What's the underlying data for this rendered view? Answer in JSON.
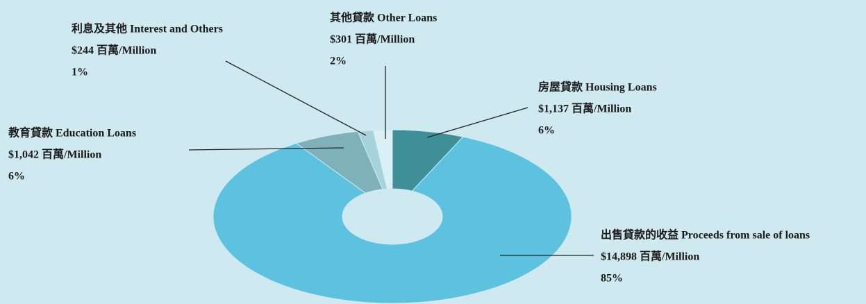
{
  "chart_data": {
    "type": "pie",
    "donut": true,
    "categories": [
      "房屋貸款 Housing Loans",
      "出售貸款的收益 Proceeds from sale of loans",
      "教育貸款 Education Loans",
      "利息及其他 Interest and Others",
      "其他貸款 Other Loans"
    ],
    "values": [
      1137,
      14898,
      1042,
      244,
      301
    ],
    "value_labels": [
      "$1,137 百萬/Million",
      "$14,898 百萬/Million",
      "$1,042 百萬/Million",
      "$244 百萬/Million",
      "$301 百萬/Million"
    ],
    "percent_labels": [
      "6%",
      "85%",
      "6%",
      "1%",
      "2%"
    ],
    "colors": [
      "#3f8f98",
      "#5cc2df",
      "#7fb1ba",
      "#a6d2db",
      "#d9f0f5"
    ]
  }
}
